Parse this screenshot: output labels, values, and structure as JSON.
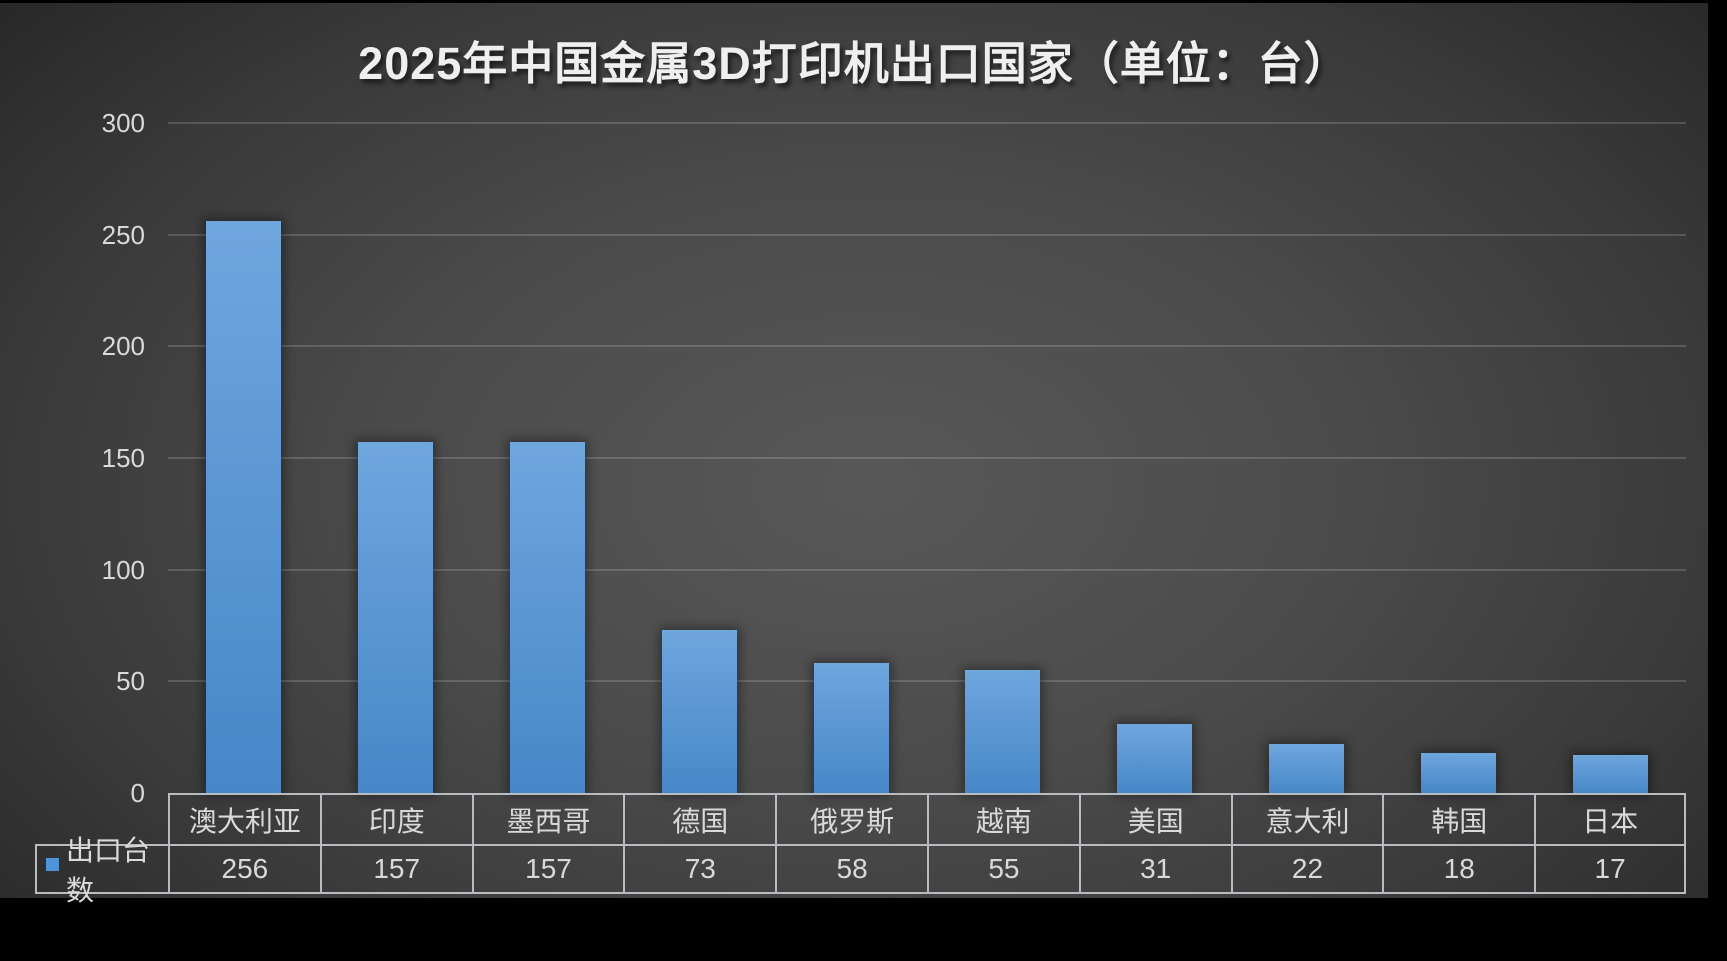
{
  "title": "2025年中国金属3D打印机出口国家（单位：台）",
  "legend": {
    "series_label": "出口台数",
    "marker_color": "#4E94D8"
  },
  "y_axis": {
    "min": 0,
    "max": 300,
    "step": 50,
    "tick_labels": [
      "0",
      "50",
      "100",
      "150",
      "200",
      "250",
      "300"
    ]
  },
  "colors": {
    "bar_gradient_top": "#6FA6DE",
    "bar_gradient_bottom": "#4787C8",
    "legend_marker": "#4E94D8",
    "background_center": "#585858",
    "background_edge": "#232323",
    "gridline": "rgba(255,255,255,0.16)",
    "table_border": "#B8BCC0",
    "text": "#D9D9D9",
    "title_text": "#EFEFEF",
    "outer_frame": "#000000"
  },
  "chart_data": {
    "type": "bar",
    "title": "2025年中国金属3D打印机出口国家（单位：台）",
    "categories": [
      "澳大利亚",
      "印度",
      "墨西哥",
      "德国",
      "俄罗斯",
      "越南",
      "美国",
      "意大利",
      "韩国",
      "日本"
    ],
    "series": [
      {
        "name": "出口台数",
        "values": [
          256,
          157,
          157,
          73,
          58,
          55,
          31,
          22,
          18,
          17
        ]
      }
    ],
    "xlabel": "",
    "ylabel": "",
    "ylim": [
      0,
      300
    ],
    "ytick_interval": 50,
    "grid": true,
    "legend_position": "data-table-left",
    "data_table_shown": true
  }
}
